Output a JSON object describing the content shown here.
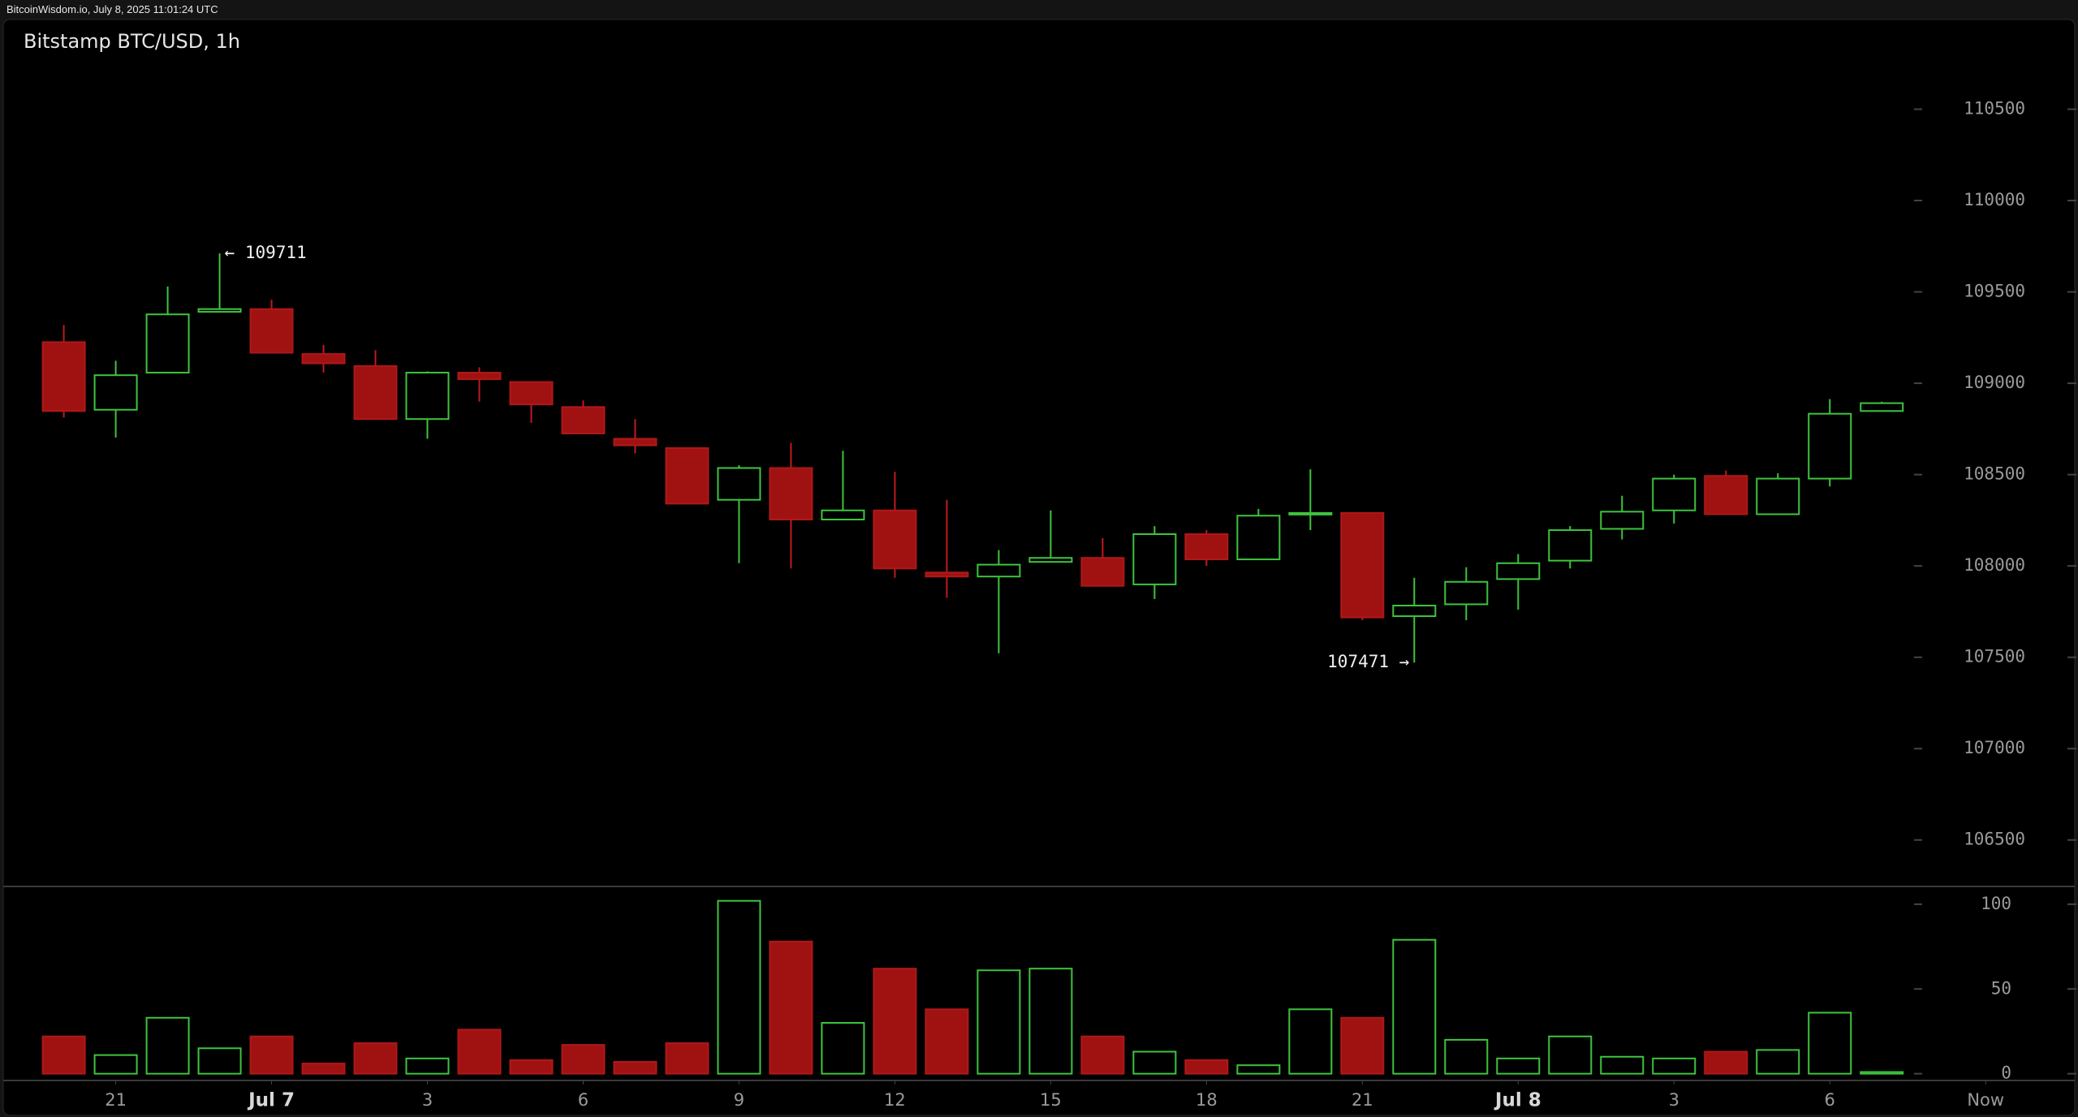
{
  "header": {
    "text": "BitcoinWisdom.io, July 8, 2025 11:01:24 UTC"
  },
  "chart_data": {
    "type": "candlestick",
    "title": "Bitstamp BTC/USD, 1h",
    "open": [
      109225,
      108855,
      109058,
      109391,
      109406,
      109160,
      109094,
      108804,
      109058,
      109007,
      108870,
      108696,
      108645,
      108362,
      108536,
      108254,
      108304,
      107964,
      107942,
      108022,
      108044,
      107899,
      108174,
      108036,
      108283,
      108290,
      107725,
      107790,
      107928,
      108029,
      108203,
      108304,
      108493,
      108283,
      108478,
      108848
    ],
    "high": [
      109319,
      109123,
      109529,
      109711,
      109457,
      109210,
      109181,
      109065,
      109087,
      109007,
      108906,
      108804,
      108645,
      108551,
      108674,
      108630,
      108515,
      108362,
      108087,
      108304,
      108152,
      108218,
      108196,
      108312,
      108529,
      108290,
      107935,
      107993,
      108065,
      108218,
      108384,
      108500,
      108522,
      108507,
      108913,
      108899
    ],
    "low": [
      108812,
      108703,
      109058,
      109391,
      109167,
      109058,
      108804,
      108696,
      108899,
      108783,
      108725,
      108616,
      108341,
      108015,
      107986,
      108254,
      107935,
      107826,
      107522,
      108022,
      107891,
      107819,
      108000,
      108036,
      108196,
      107703,
      107471,
      107703,
      107761,
      107986,
      108145,
      108232,
      108283,
      108283,
      108435,
      108848
    ],
    "close": [
      108848,
      109044,
      109377,
      109406,
      109167,
      109109,
      108804,
      109058,
      109022,
      108884,
      108725,
      108660,
      108341,
      108536,
      108254,
      108304,
      107986,
      107942,
      108007,
      108044,
      107891,
      108174,
      108036,
      108275,
      108290,
      107718,
      107783,
      107913,
      108015,
      108196,
      108297,
      108478,
      108283,
      108478,
      108833,
      108891
    ],
    "up_color": "#3ec43e",
    "down_color": "#a01212",
    "ylim": [
      106250,
      111000
    ],
    "yticks": [
      106500,
      107000,
      107500,
      108000,
      108500,
      109000,
      109500,
      110000,
      110500
    ],
    "xlim": [
      -1.15,
      38.7
    ],
    "xticks": [
      {
        "value": 1,
        "label": "21"
      },
      {
        "value": 4,
        "label": "Jul 7"
      },
      {
        "value": 7,
        "label": "3"
      },
      {
        "value": 10,
        "label": "6"
      },
      {
        "value": 13,
        "label": "9"
      },
      {
        "value": 16,
        "label": "12"
      },
      {
        "value": 19,
        "label": "15"
      },
      {
        "value": 22,
        "label": "18"
      },
      {
        "value": 25,
        "label": "21"
      },
      {
        "value": 28,
        "label": "Jul 8"
      },
      {
        "value": 31,
        "label": "3"
      },
      {
        "value": 34,
        "label": "6"
      },
      {
        "value": 37,
        "label": "Now"
      }
    ],
    "annotations": [
      "← 109711",
      "107471 →"
    ],
    "volume": {
      "values": [
        22,
        11,
        33,
        15,
        22,
        6,
        18,
        9,
        26,
        8,
        17,
        7,
        18,
        102,
        78,
        30,
        62,
        38,
        61,
        62,
        22,
        13,
        8,
        5,
        38,
        33,
        79,
        20,
        9,
        22,
        10,
        9,
        13,
        14,
        36,
        1
      ],
      "ylim": [
        -4,
        110
      ],
      "yticks": [
        0,
        50,
        100
      ]
    }
  }
}
